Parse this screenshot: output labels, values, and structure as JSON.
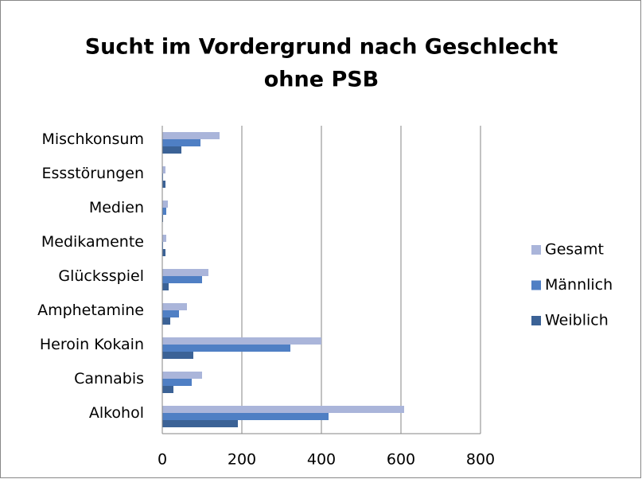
{
  "chart_data": {
    "type": "bar",
    "title": [
      "Sucht im Vordergrund nach Geschlecht",
      "ohne PSB"
    ],
    "orientation": "horizontal",
    "categories": [
      "Alkohol",
      "Cannabis",
      "Heroin Kokain",
      "Amphetamine",
      "Glücksspiel",
      "Medikamente",
      "Medien",
      "Essstörungen",
      "Mischkonsum"
    ],
    "series": [
      {
        "name": "Gesamt",
        "color": "#aab5da",
        "values": [
          608,
          100,
          400,
          62,
          116,
          10,
          14,
          8,
          144
        ]
      },
      {
        "name": "Männlich",
        "color": "#4f7fc4",
        "values": [
          418,
          74,
          322,
          42,
          100,
          2,
          10,
          2,
          96
        ]
      },
      {
        "name": "Weiblich",
        "color": "#3b6296",
        "values": [
          190,
          28,
          78,
          20,
          16,
          8,
          2,
          8,
          48
        ]
      }
    ],
    "xlim": [
      0,
      800
    ],
    "xticks": [
      0,
      200,
      400,
      600,
      800
    ],
    "grid": true,
    "legend": "right"
  }
}
